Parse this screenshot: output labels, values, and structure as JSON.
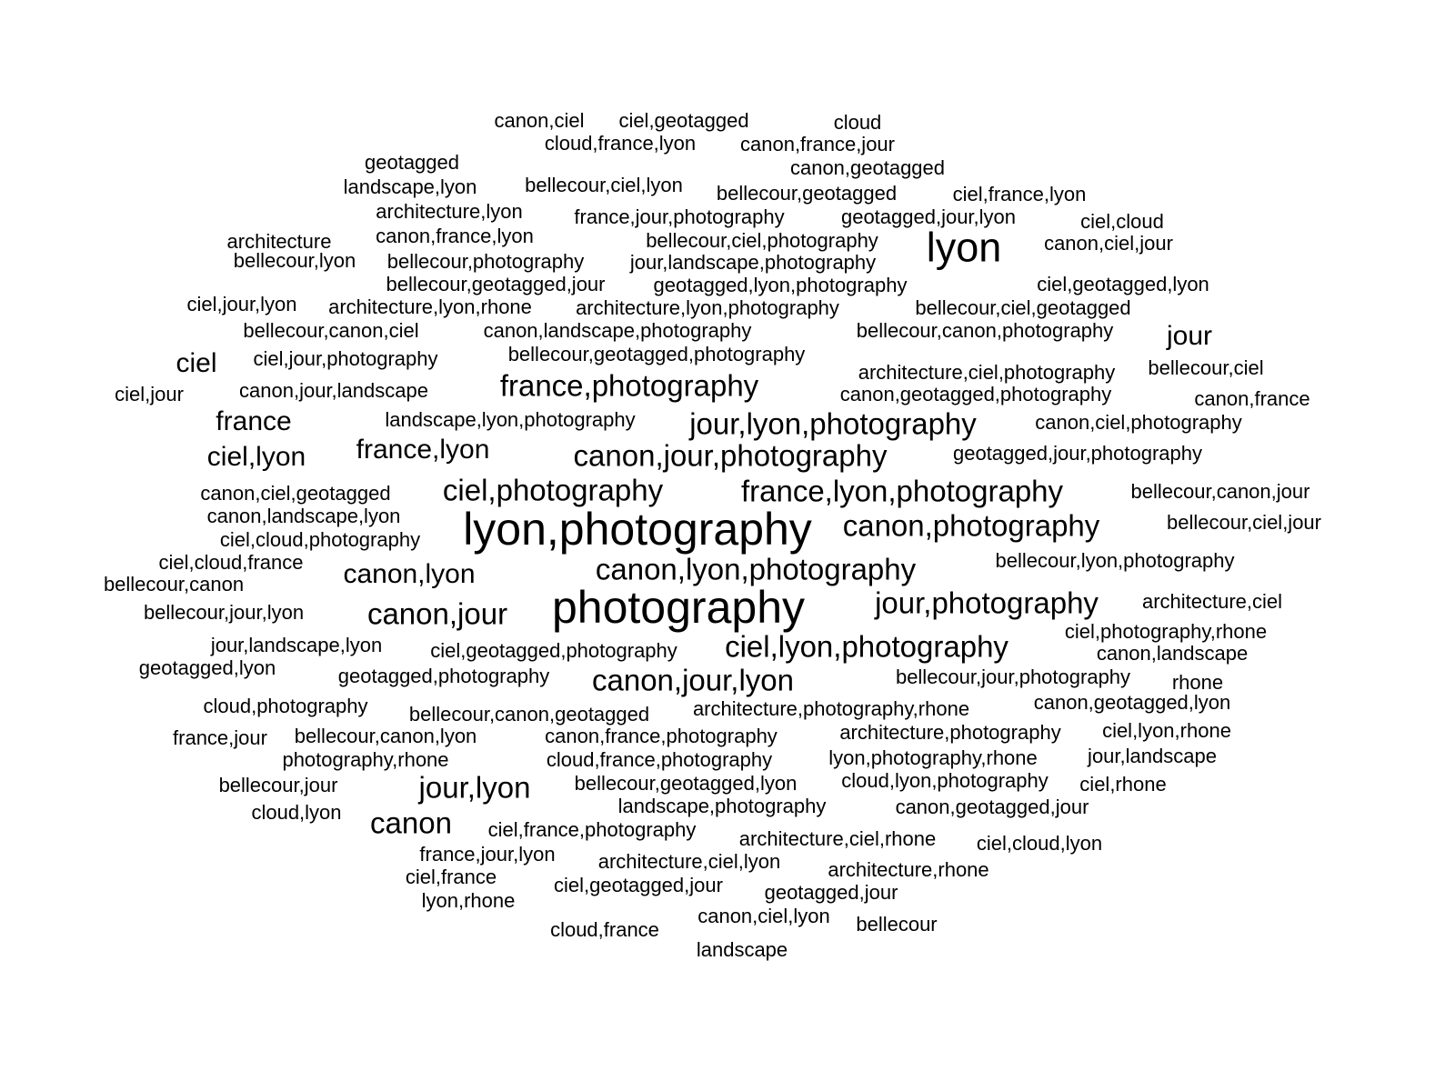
{
  "text_color": "#000000",
  "background_color": "#ffffff",
  "words": [
    "canon,ciel",
    "ciel,geotagged",
    "cloud",
    "cloud,france,lyon",
    "canon,france,jour",
    "geotagged",
    "canon,geotagged",
    "landscape,lyon",
    "bellecour,ciel,lyon",
    "bellecour,geotagged",
    "ciel,france,lyon",
    "architecture,lyon",
    "france,jour,photography",
    "geotagged,jour,lyon",
    "ciel,cloud",
    "architecture",
    "canon,france,lyon",
    "bellecour,ciel,photography",
    "lyon",
    "canon,ciel,jour",
    "bellecour,lyon",
    "bellecour,photography",
    "jour,landscape,photography",
    "bellecour,geotagged,jour",
    "geotagged,lyon,photography",
    "ciel,geotagged,lyon",
    "ciel,jour,lyon",
    "architecture,lyon,rhone",
    "architecture,lyon,photography",
    "bellecour,ciel,geotagged",
    "bellecour,canon,ciel",
    "canon,landscape,photography",
    "bellecour,canon,photography",
    "jour",
    "ciel",
    "ciel,jour,photography",
    "bellecour,geotagged,photography",
    "architecture,ciel,photography",
    "bellecour,ciel",
    "ciel,jour",
    "canon,jour,landscape",
    "france,photography",
    "canon,geotagged,photography",
    "canon,france",
    "france",
    "landscape,lyon,photography",
    "jour,lyon,photography",
    "canon,ciel,photography",
    "ciel,lyon",
    "france,lyon",
    "canon,jour,photography",
    "geotagged,jour,photography",
    "canon,ciel,geotagged",
    "ciel,photography",
    "france,lyon,photography",
    "bellecour,canon,jour",
    "canon,landscape,lyon",
    "lyon,photography",
    "canon,photography",
    "bellecour,ciel,jour",
    "ciel,cloud,photography",
    "ciel,cloud,france",
    "bellecour,lyon,photography",
    "canon,lyon",
    "canon,lyon,photography",
    "bellecour,canon",
    "bellecour,jour,lyon",
    "canon,jour",
    "photography",
    "jour,photography",
    "architecture,ciel",
    "ciel,photography,rhone",
    "jour,landscape,lyon",
    "ciel,geotagged,photography",
    "ciel,lyon,photography",
    "canon,landscape",
    "geotagged,lyon",
    "geotagged,photography",
    "canon,jour,lyon",
    "bellecour,jour,photography",
    "rhone",
    "cloud,photography",
    "canon,geotagged,lyon",
    "bellecour,canon,geotagged",
    "architecture,photography,rhone",
    "france,jour",
    "bellecour,canon,lyon",
    "canon,france,photography",
    "architecture,photography",
    "ciel,lyon,rhone",
    "photography,rhone",
    "cloud,france,photography",
    "lyon,photography,rhone",
    "jour,landscape",
    "bellecour,jour",
    "jour,lyon",
    "bellecour,geotagged,lyon",
    "cloud,lyon,photography",
    "ciel,rhone",
    "landscape,photography",
    "cloud,lyon",
    "canon,geotagged,jour",
    "canon",
    "ciel,france,photography",
    "architecture,ciel,rhone",
    "ciel,cloud,lyon",
    "france,jour,lyon",
    "architecture,ciel,lyon",
    "architecture,rhone",
    "ciel,france",
    "ciel,geotagged,jour",
    "geotagged,jour",
    "lyon,rhone",
    "canon,ciel,lyon",
    "bellecour",
    "cloud,france",
    "landscape"
  ]
}
